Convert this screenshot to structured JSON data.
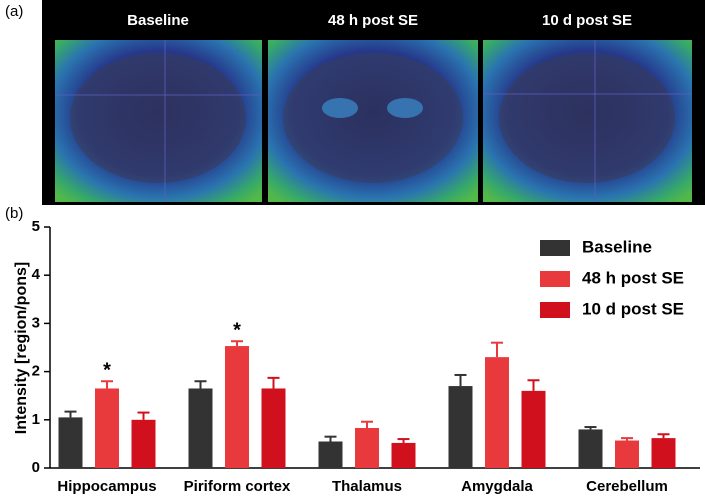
{
  "panel_a": {
    "label": "(a)",
    "titles": [
      "Baseline",
      "48 h post SE",
      "10 d post SE"
    ]
  },
  "chart_data": {
    "type": "bar",
    "panel_label": "(b)",
    "y_label": "Intensity [region/pons]",
    "categories": [
      "Hippocampus",
      "Piriform cortex",
      "Thalamus",
      "Amygdala",
      "Cerebellum"
    ],
    "series": [
      {
        "name": "Baseline",
        "color": "#333333",
        "values": [
          1.05,
          1.65,
          0.55,
          1.7,
          0.8
        ],
        "errors": [
          0.12,
          0.15,
          0.1,
          0.23,
          0.05
        ]
      },
      {
        "name": "48 h post SE",
        "color": "#e8393d",
        "values": [
          1.65,
          2.53,
          0.83,
          2.3,
          0.57
        ],
        "errors": [
          0.15,
          0.1,
          0.13,
          0.3,
          0.05
        ],
        "significance": [
          "*",
          "*",
          null,
          null,
          null
        ]
      },
      {
        "name": "10 d post SE",
        "color": "#d0101c",
        "values": [
          1.0,
          1.65,
          0.52,
          1.6,
          0.62
        ],
        "errors": [
          0.15,
          0.22,
          0.08,
          0.22,
          0.08
        ]
      }
    ],
    "ylim": [
      0,
      5
    ],
    "yticks": [
      0,
      1,
      2,
      3,
      4,
      5
    ],
    "legend": "top-right"
  }
}
